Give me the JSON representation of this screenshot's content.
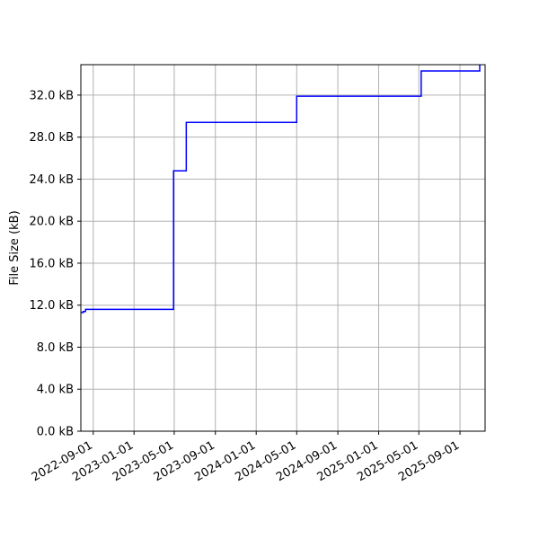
{
  "chart_data": {
    "type": "line",
    "title": "",
    "xlabel": "",
    "ylabel": "File Size (kB)",
    "grid": true,
    "x_ticks": [
      "2022-09-01",
      "2023-01-01",
      "2023-05-01",
      "2023-09-01",
      "2024-01-01",
      "2024-05-01",
      "2024-09-01",
      "2025-01-01",
      "2025-05-01",
      "2025-09-01"
    ],
    "y_ticks": [
      0,
      4,
      8,
      12,
      16,
      20,
      24,
      28,
      32
    ],
    "y_tick_format": "{v} kB",
    "xlim": [
      "2022-07-26",
      "2025-11-15"
    ],
    "ylim": [
      0,
      34.9
    ],
    "line_color": "#0000ff",
    "series": [
      {
        "name": "",
        "step": "post",
        "points": [
          {
            "x": "2022-07-26",
            "y": 11.3
          },
          {
            "x": "2022-08-02",
            "y": 11.4
          },
          {
            "x": "2022-08-09",
            "y": 11.6
          },
          {
            "x": "2023-04-29",
            "y": 24.8
          },
          {
            "x": "2023-06-06",
            "y": 29.4
          },
          {
            "x": "2024-05-01",
            "y": 31.9
          },
          {
            "x": "2025-05-08",
            "y": 34.3
          },
          {
            "x": "2025-10-30",
            "y": 35.2
          }
        ]
      }
    ]
  }
}
